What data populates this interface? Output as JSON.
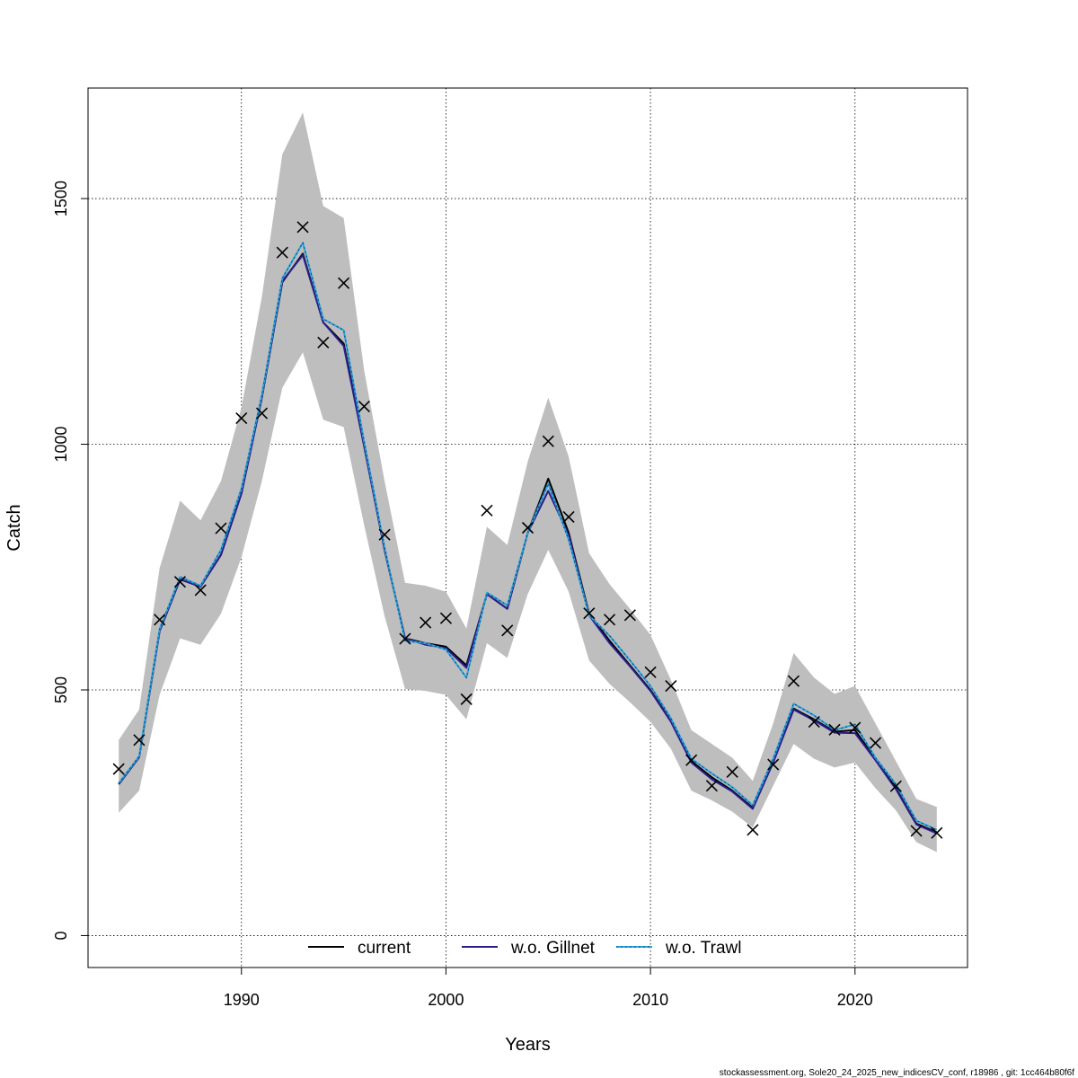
{
  "chart_data": {
    "type": "line",
    "xlabel": "Years",
    "ylabel": "Catch",
    "xlim": [
      1982.5,
      2025.5
    ],
    "ylim": [
      -65,
      1725
    ],
    "x_ticks": [
      1990,
      2000,
      2010,
      2020
    ],
    "y_ticks": [
      0,
      500,
      1000,
      1500
    ],
    "grid": true,
    "legend_position": "bottom-center",
    "x": [
      1984,
      1985,
      1986,
      1987,
      1988,
      1989,
      1990,
      1991,
      1992,
      1993,
      1994,
      1995,
      1996,
      1997,
      1998,
      1999,
      2000,
      2001,
      2002,
      2003,
      2004,
      2005,
      2006,
      2007,
      2008,
      2009,
      2010,
      2011,
      2012,
      2013,
      2014,
      2015,
      2016,
      2017,
      2018,
      2019,
      2020,
      2021,
      2022,
      2023,
      2024
    ],
    "band": {
      "lower": [
        250,
        295,
        490,
        605,
        592,
        655,
        770,
        925,
        1115,
        1187,
        1050,
        1035,
        835,
        650,
        502,
        498,
        490,
        440,
        595,
        565,
        695,
        785,
        700,
        560,
        512,
        475,
        435,
        380,
        295,
        275,
        252,
        220,
        305,
        390,
        360,
        342,
        352,
        300,
        255,
        190,
        170
      ],
      "upper": [
        398,
        460,
        748,
        885,
        845,
        925,
        1075,
        1300,
        1590,
        1675,
        1485,
        1460,
        1150,
        925,
        718,
        712,
        700,
        625,
        832,
        795,
        965,
        1095,
        975,
        778,
        715,
        665,
        612,
        520,
        418,
        390,
        362,
        315,
        432,
        575,
        525,
        492,
        508,
        432,
        355,
        278,
        262
      ]
    },
    "series": [
      {
        "name": "current",
        "color": "#000000",
        "style": "solid",
        "values": [
          308,
          363,
          620,
          725,
          710,
          775,
          900,
          1095,
          1330,
          1388,
          1248,
          1205,
          1000,
          785,
          605,
          595,
          588,
          550,
          695,
          665,
          820,
          930,
          820,
          655,
          600,
          550,
          500,
          437,
          355,
          322,
          295,
          260,
          355,
          462,
          440,
          415,
          418,
          360,
          300,
          228,
          210
        ]
      },
      {
        "name": "w.o. Gillnet",
        "color": "#2b1d8c",
        "style": "solid",
        "values": [
          308,
          363,
          620,
          725,
          710,
          775,
          900,
          1095,
          1332,
          1385,
          1248,
          1200,
          995,
          785,
          605,
          592,
          585,
          545,
          695,
          665,
          820,
          905,
          815,
          652,
          595,
          548,
          498,
          435,
          352,
          318,
          293,
          258,
          352,
          460,
          438,
          413,
          412,
          357,
          298,
          226,
          208
        ]
      },
      {
        "name": "w.o. Trawl",
        "color": "#29a8e0",
        "style": "dotted",
        "values": [
          310,
          365,
          624,
          730,
          712,
          785,
          910,
          1100,
          1338,
          1410,
          1255,
          1232,
          1005,
          790,
          600,
          595,
          582,
          525,
          698,
          672,
          820,
          920,
          806,
          652,
          610,
          560,
          508,
          442,
          360,
          330,
          302,
          265,
          360,
          472,
          448,
          418,
          430,
          362,
          308,
          234,
          215
        ]
      }
    ],
    "observed": {
      "name": "observed catch",
      "marker": "x",
      "values": [
        339,
        398,
        643,
        720,
        703,
        829,
        1053,
        1063,
        1390,
        1442,
        1207,
        1328,
        1077,
        816,
        604,
        637,
        646,
        481,
        865,
        621,
        830,
        1006,
        852,
        656,
        643,
        652,
        536,
        508,
        357,
        305,
        333,
        215,
        348,
        518,
        435,
        419,
        423,
        392,
        304,
        213,
        209
      ]
    }
  },
  "footer": {
    "text": "stockassessment.org, Sole20_24_2025_new_indicesCV_conf, r18986 , git: 1cc464b80f6f"
  }
}
